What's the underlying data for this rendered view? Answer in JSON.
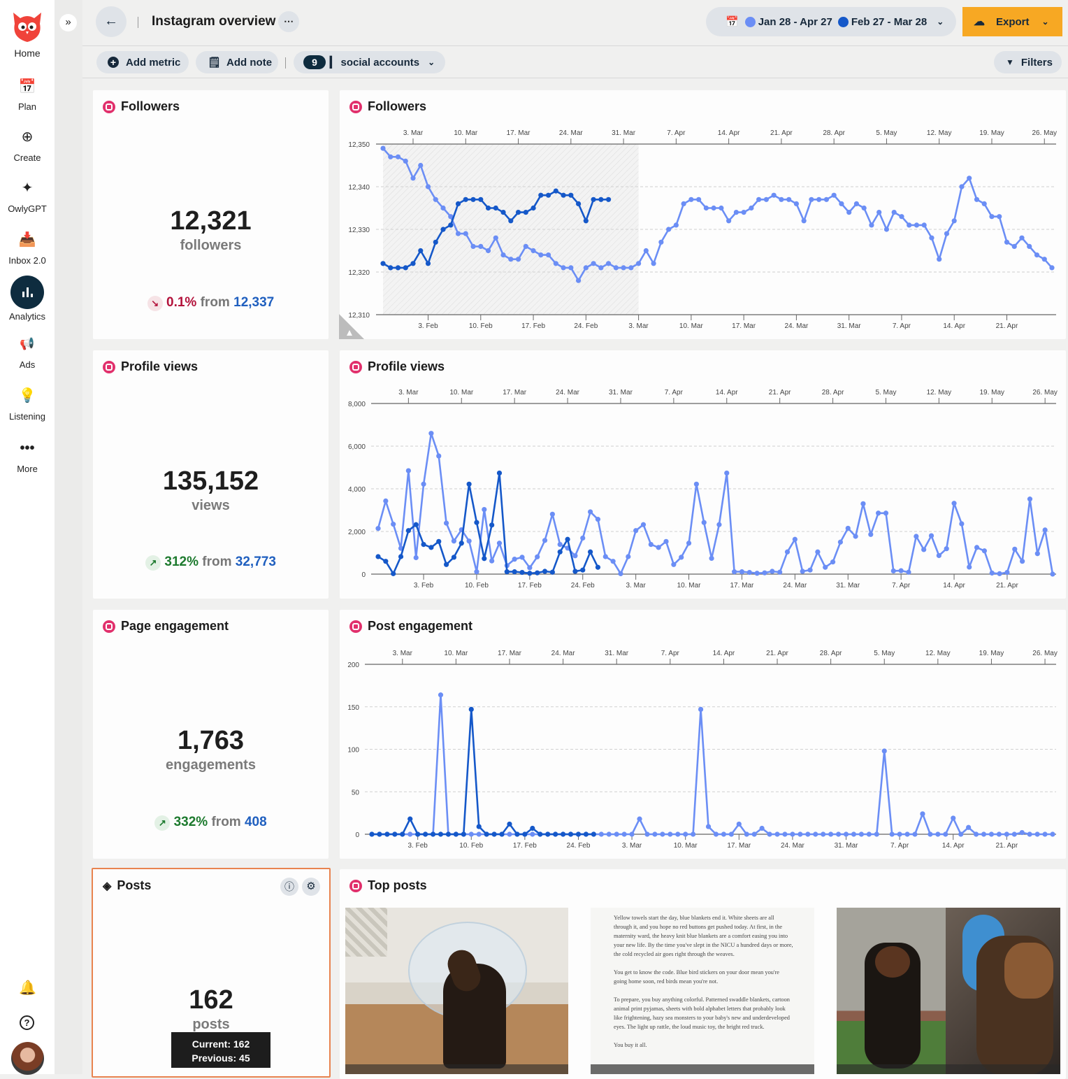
{
  "sidebar": {
    "items": [
      {
        "label": "Home",
        "icon": "owl-logo"
      },
      {
        "label": "Plan",
        "icon": "calendar-icon"
      },
      {
        "label": "Create",
        "icon": "plus-circle-icon"
      },
      {
        "label": "OwlyGPT",
        "icon": "sparkles-icon"
      },
      {
        "label": "Inbox 2.0",
        "icon": "inbox-icon"
      },
      {
        "label": "Analytics",
        "icon": "bar-chart-icon",
        "active": true
      },
      {
        "label": "Ads",
        "icon": "megaphone-icon"
      },
      {
        "label": "Listening",
        "icon": "lightbulb-icon"
      },
      {
        "label": "More",
        "icon": "more-icon"
      }
    ]
  },
  "header": {
    "title": "Instagram overview",
    "date_current": "Jan 28 - Apr 27",
    "date_previous": "Feb 27 - Mar 28",
    "export_label": "Export",
    "current_color": "#6b8ef5",
    "previous_color": "#1558c9",
    "export_color": "#f7a823"
  },
  "toolbar": {
    "add_metric": "Add metric",
    "add_note": "Add note",
    "accounts_count": "9",
    "accounts_label": "social accounts",
    "filters": "Filters"
  },
  "cards": {
    "followers": {
      "title": "Followers",
      "value": "12,321",
      "unit": "followers",
      "change": "0.1%",
      "from_label": "from",
      "previous": "12,337",
      "trend": "down"
    },
    "profile_views": {
      "title": "Profile views",
      "value": "135,152",
      "unit": "views",
      "change": "312%",
      "from_label": "from",
      "previous": "32,773",
      "trend": "up"
    },
    "page_engagement": {
      "title": "Page engagement",
      "value": "1,763",
      "unit": "engagements",
      "change": "332%",
      "from_label": "from",
      "previous": "408",
      "trend": "up"
    },
    "posts": {
      "title": "Posts",
      "value": "162",
      "unit": "posts",
      "tooltip_current": "Current: 162",
      "tooltip_previous": "Previous: 45"
    }
  },
  "top_posts": {
    "title": "Top posts",
    "text_post": [
      "Yellow towels start the day, blue blankets end it. White sheets are all through it, and you hope no red buttons get pushed today. At first, in the maternity ward, the heavy knit blue blankets are a comfort easing you into your new life. By the time you've slept in the NICU a hundred days or more, the cold recycled air goes right through the weaves.",
      "You get to know the code. Blue bird stickers on your door mean you're going home soon, red birds mean you're not.",
      "To prepare, you buy anything colorful. Patterned swaddle blankets, cartoon animal print pyjamas, sheets with bold alphabet letters that probably look like frightening, hazy sea monsters to your baby's new and underdeveloped eyes. The light up rattle, the loud music toy, the bright red truck.",
      "You buy it all."
    ]
  },
  "chart_data": [
    {
      "id": "followers",
      "type": "line",
      "title": "Followers",
      "ylim": [
        12310,
        12350
      ],
      "yticks": [
        12310,
        12320,
        12330,
        12340,
        12350
      ],
      "ytick_labels": [
        "12,310",
        "12,320",
        "12,330",
        "12,340",
        "12,350"
      ],
      "x_bottom_labels": [
        "3. Feb",
        "10. Feb",
        "17. Feb",
        "24. Feb",
        "3. Mar",
        "10. Mar",
        "17. Mar",
        "24. Mar",
        "31. Mar",
        "7. Apr",
        "14. Apr",
        "21. Apr"
      ],
      "x_top_labels": [
        "3. Mar",
        "10. Mar",
        "17. Mar",
        "24. Mar",
        "31. Mar",
        "7. Apr",
        "14. Apr",
        "21. Apr",
        "28. Apr",
        "5. May",
        "12. May",
        "19. May",
        "26. May"
      ],
      "shaded_days": 34,
      "grid": true,
      "series": [
        {
          "name": "Jan 28 - Apr 27",
          "values": [
            12349,
            12347,
            12347,
            12346,
            12342,
            12345,
            12340,
            12337,
            12335,
            12333,
            12329,
            12329,
            12326,
            12326,
            12325,
            12328,
            12324,
            12323,
            12323,
            12326,
            12325,
            12324,
            12324,
            12322,
            12321,
            12321,
            12318,
            12321,
            12322,
            12321,
            12322,
            12321,
            12321,
            12321,
            12322,
            12325,
            12322,
            12327,
            12330,
            12331,
            12336,
            12337,
            12337,
            12335,
            12335,
            12335,
            12332,
            12334,
            12334,
            12335,
            12337,
            12337,
            12338,
            12337,
            12337,
            12336,
            12332,
            12337,
            12337,
            12337,
            12338,
            12336,
            12334,
            12336,
            12335,
            12331,
            12334,
            12330,
            12334,
            12333,
            12331,
            12331,
            12331,
            12328,
            12323,
            12329,
            12332,
            12340,
            12342,
            12337,
            12336,
            12333,
            12333,
            12327,
            12326,
            12328,
            12326,
            12324,
            12323,
            12321
          ]
        },
        {
          "name": "Feb 27 - Mar 28",
          "values": [
            12322,
            12321,
            12321,
            12321,
            12322,
            12325,
            12322,
            12327,
            12330,
            12331,
            12336,
            12337,
            12337,
            12337,
            12335,
            12335,
            12334,
            12332,
            12334,
            12334,
            12335,
            12338,
            12338,
            12339,
            12338,
            12338,
            12336,
            12332,
            12337,
            12337,
            12337
          ]
        }
      ]
    },
    {
      "id": "profile",
      "type": "line",
      "title": "Profile views",
      "ylim": [
        0,
        8000
      ],
      "yticks": [
        0,
        2000,
        4000,
        6000,
        8000
      ],
      "ytick_labels": [
        "0",
        "2,000",
        "4,000",
        "6,000",
        "8,000"
      ],
      "x_bottom_labels": [
        "3. Feb",
        "10. Feb",
        "17. Feb",
        "24. Feb",
        "3. Mar",
        "10. Mar",
        "17. Mar",
        "24. Mar",
        "31. Mar",
        "7. Apr",
        "14. Apr",
        "21. Apr"
      ],
      "x_top_labels": [
        "3. Mar",
        "10. Mar",
        "17. Mar",
        "24. Mar",
        "31. Mar",
        "7. Apr",
        "14. Apr",
        "21. Apr",
        "28. Apr",
        "5. May",
        "12. May",
        "19. May",
        "26. May"
      ],
      "grid": true,
      "series": [
        {
          "name": "Jan 28 - Apr 27",
          "values": [
            2140,
            3430,
            2340,
            1210,
            4850,
            770,
            4220,
            6600,
            5540,
            2390,
            1550,
            2080,
            1550,
            110,
            3030,
            620,
            1450,
            400,
            700,
            790,
            300,
            810,
            1580,
            2810,
            1390,
            1220,
            860,
            1690,
            2920,
            2570,
            820,
            600,
            20,
            820,
            2040,
            2320,
            1390,
            1250,
            1530,
            450,
            790,
            1450,
            4220,
            2420,
            740,
            2320,
            4740,
            110,
            110,
            80,
            40,
            60,
            130,
            90,
            1040,
            1630,
            130,
            190,
            1040,
            320,
            570,
            1500,
            2150,
            1770,
            3300,
            1860,
            2860,
            2860,
            150,
            160,
            90,
            1770,
            1150,
            1800,
            870,
            1190,
            3320,
            2360,
            330,
            1250,
            1090,
            50,
            20,
            80,
            1170,
            600,
            3520,
            960,
            2070,
            0
          ]
        },
        {
          "name": "Feb 27 - Mar 28",
          "values": [
            820,
            600,
            20,
            820,
            2040,
            2320,
            1390,
            1250,
            1530,
            450,
            790,
            1450,
            4220,
            2420,
            730,
            2300,
            4740,
            110,
            110,
            80,
            40,
            60,
            130,
            90,
            1040,
            1630,
            130,
            190,
            1040,
            320
          ]
        }
      ]
    },
    {
      "id": "post",
      "type": "line",
      "title": "Post engagement",
      "ylim": [
        0,
        200
      ],
      "yticks": [
        0,
        50,
        100,
        150,
        200
      ],
      "ytick_labels": [
        "0",
        "50",
        "100",
        "150",
        "200"
      ],
      "x_bottom_labels": [
        "3. Feb",
        "10. Feb",
        "17. Feb",
        "24. Feb",
        "3. Mar",
        "10. Mar",
        "17. Mar",
        "24. Mar",
        "31. Mar",
        "7. Apr",
        "14. Apr",
        "21. Apr"
      ],
      "x_top_labels": [
        "3. Mar",
        "10. Mar",
        "17. Mar",
        "24. Mar",
        "31. Mar",
        "7. Apr",
        "14. Apr",
        "21. Apr",
        "28. Apr",
        "5. May",
        "12. May",
        "19. May",
        "26. May"
      ],
      "grid": true,
      "series": [
        {
          "name": "Jan 28 - Apr 27",
          "values": [
            0,
            0,
            0,
            0,
            0,
            0,
            0,
            0,
            0,
            164,
            0,
            0,
            0,
            0,
            0,
            0,
            0,
            0,
            0,
            0,
            0,
            0,
            0,
            0,
            0,
            0,
            0,
            0,
            0,
            0,
            0,
            0,
            0,
            0,
            0,
            18,
            0,
            0,
            0,
            0,
            0,
            0,
            0,
            147,
            9,
            0,
            0,
            0,
            12,
            0,
            0,
            7,
            0,
            0,
            0,
            0,
            0,
            0,
            0,
            0,
            0,
            0,
            0,
            0,
            0,
            0,
            0,
            98,
            0,
            0,
            0,
            0,
            24,
            0,
            0,
            0,
            19,
            0,
            8,
            0,
            0,
            0,
            0,
            0,
            0,
            2,
            0,
            0,
            0,
            0
          ]
        },
        {
          "name": "Feb 27 - Mar 28",
          "values": [
            0,
            0,
            0,
            0,
            0,
            18,
            0,
            0,
            0,
            0,
            0,
            0,
            0,
            147,
            9,
            0,
            0,
            0,
            12,
            0,
            0,
            7,
            0,
            0,
            0,
            0,
            0,
            0,
            0,
            0
          ]
        }
      ]
    }
  ]
}
